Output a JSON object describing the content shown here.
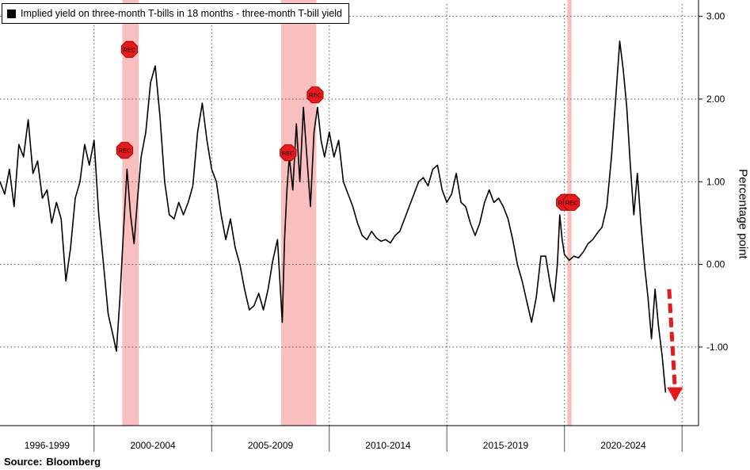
{
  "chart_data": {
    "type": "line",
    "series": [
      {
        "name": "Implied yield on three-month T-bills in 18 months - three-month T-bill yield",
        "color": "#000000",
        "points": [
          [
            1996.0,
            1.0
          ],
          [
            1996.2,
            0.85
          ],
          [
            1996.4,
            1.15
          ],
          [
            1996.6,
            0.7
          ],
          [
            1996.8,
            1.45
          ],
          [
            1997.0,
            1.3
          ],
          [
            1997.2,
            1.75
          ],
          [
            1997.4,
            1.1
          ],
          [
            1997.6,
            1.25
          ],
          [
            1997.8,
            0.8
          ],
          [
            1998.0,
            0.9
          ],
          [
            1998.2,
            0.5
          ],
          [
            1998.4,
            0.75
          ],
          [
            1998.6,
            0.55
          ],
          [
            1998.8,
            -0.2
          ],
          [
            1999.0,
            0.2
          ],
          [
            1999.2,
            0.8
          ],
          [
            1999.4,
            1.0
          ],
          [
            1999.6,
            1.45
          ],
          [
            1999.8,
            1.2
          ],
          [
            2000.0,
            1.5
          ],
          [
            2000.2,
            0.6
          ],
          [
            2000.4,
            0.0
          ],
          [
            2000.6,
            -0.6
          ],
          [
            2000.8,
            -0.85
          ],
          [
            2000.95,
            -1.05
          ],
          [
            2001.1,
            -0.4
          ],
          [
            2001.25,
            0.4
          ],
          [
            2001.4,
            1.15
          ],
          [
            2001.55,
            0.6
          ],
          [
            2001.7,
            0.25
          ],
          [
            2001.85,
            0.8
          ],
          [
            2002.0,
            1.3
          ],
          [
            2002.2,
            1.6
          ],
          [
            2002.4,
            2.2
          ],
          [
            2002.6,
            2.4
          ],
          [
            2002.8,
            1.8
          ],
          [
            2003.0,
            1.0
          ],
          [
            2003.2,
            0.6
          ],
          [
            2003.4,
            0.55
          ],
          [
            2003.6,
            0.75
          ],
          [
            2003.8,
            0.6
          ],
          [
            2004.0,
            0.75
          ],
          [
            2004.2,
            0.95
          ],
          [
            2004.4,
            1.6
          ],
          [
            2004.6,
            1.95
          ],
          [
            2004.8,
            1.5
          ],
          [
            2005.0,
            1.15
          ],
          [
            2005.2,
            1.0
          ],
          [
            2005.4,
            0.6
          ],
          [
            2005.6,
            0.3
          ],
          [
            2005.8,
            0.55
          ],
          [
            2006.0,
            0.2
          ],
          [
            2006.2,
            0.0
          ],
          [
            2006.4,
            -0.3
          ],
          [
            2006.6,
            -0.55
          ],
          [
            2006.8,
            -0.5
          ],
          [
            2007.0,
            -0.35
          ],
          [
            2007.2,
            -0.55
          ],
          [
            2007.4,
            -0.3
          ],
          [
            2007.6,
            0.05
          ],
          [
            2007.8,
            0.3
          ],
          [
            2008.0,
            -0.7
          ],
          [
            2008.1,
            0.3
          ],
          [
            2008.2,
            0.9
          ],
          [
            2008.3,
            1.3
          ],
          [
            2008.45,
            0.9
          ],
          [
            2008.6,
            1.7
          ],
          [
            2008.75,
            1.0
          ],
          [
            2008.9,
            1.9
          ],
          [
            2009.05,
            1.3
          ],
          [
            2009.2,
            0.7
          ],
          [
            2009.35,
            1.6
          ],
          [
            2009.5,
            1.9
          ],
          [
            2009.65,
            1.5
          ],
          [
            2009.8,
            1.3
          ],
          [
            2010.0,
            1.6
          ],
          [
            2010.2,
            1.3
          ],
          [
            2010.4,
            1.5
          ],
          [
            2010.6,
            1.0
          ],
          [
            2010.8,
            0.85
          ],
          [
            2011.0,
            0.7
          ],
          [
            2011.2,
            0.5
          ],
          [
            2011.4,
            0.35
          ],
          [
            2011.6,
            0.3
          ],
          [
            2011.8,
            0.4
          ],
          [
            2012.0,
            0.32
          ],
          [
            2012.2,
            0.28
          ],
          [
            2012.4,
            0.3
          ],
          [
            2012.6,
            0.26
          ],
          [
            2012.8,
            0.35
          ],
          [
            2013.0,
            0.4
          ],
          [
            2013.2,
            0.55
          ],
          [
            2013.4,
            0.7
          ],
          [
            2013.6,
            0.85
          ],
          [
            2013.8,
            1.0
          ],
          [
            2014.0,
            1.05
          ],
          [
            2014.2,
            0.95
          ],
          [
            2014.4,
            1.15
          ],
          [
            2014.6,
            1.2
          ],
          [
            2014.8,
            0.9
          ],
          [
            2015.0,
            0.75
          ],
          [
            2015.2,
            0.85
          ],
          [
            2015.4,
            1.1
          ],
          [
            2015.6,
            0.75
          ],
          [
            2015.8,
            0.7
          ],
          [
            2016.0,
            0.5
          ],
          [
            2016.2,
            0.35
          ],
          [
            2016.4,
            0.5
          ],
          [
            2016.6,
            0.75
          ],
          [
            2016.8,
            0.9
          ],
          [
            2017.0,
            0.75
          ],
          [
            2017.2,
            0.8
          ],
          [
            2017.4,
            0.7
          ],
          [
            2017.6,
            0.55
          ],
          [
            2017.8,
            0.3
          ],
          [
            2018.0,
            0.0
          ],
          [
            2018.2,
            -0.2
          ],
          [
            2018.4,
            -0.45
          ],
          [
            2018.6,
            -0.7
          ],
          [
            2018.8,
            -0.4
          ],
          [
            2019.0,
            0.1
          ],
          [
            2019.2,
            0.1
          ],
          [
            2019.4,
            -0.25
          ],
          [
            2019.55,
            -0.45
          ],
          [
            2019.7,
            0.0
          ],
          [
            2019.8,
            0.6
          ],
          [
            2019.9,
            0.3
          ],
          [
            2020.0,
            0.12
          ],
          [
            2020.2,
            0.05
          ],
          [
            2020.4,
            0.1
          ],
          [
            2020.6,
            0.08
          ],
          [
            2020.8,
            0.15
          ],
          [
            2021.0,
            0.25
          ],
          [
            2021.2,
            0.3
          ],
          [
            2021.4,
            0.38
          ],
          [
            2021.6,
            0.45
          ],
          [
            2021.8,
            0.7
          ],
          [
            2022.0,
            1.3
          ],
          [
            2022.2,
            2.1
          ],
          [
            2022.35,
            2.7
          ],
          [
            2022.5,
            2.35
          ],
          [
            2022.65,
            1.9
          ],
          [
            2022.8,
            1.2
          ],
          [
            2022.95,
            0.6
          ],
          [
            2023.1,
            1.1
          ],
          [
            2023.25,
            0.5
          ],
          [
            2023.4,
            0.0
          ],
          [
            2023.55,
            -0.4
          ],
          [
            2023.7,
            -0.9
          ],
          [
            2023.85,
            -0.3
          ],
          [
            2024.0,
            -0.75
          ],
          [
            2024.15,
            -1.1
          ],
          [
            2024.3,
            -1.55
          ]
        ]
      }
    ],
    "recession_bands": [
      [
        2001.2,
        2001.9
      ],
      [
        2007.95,
        2009.45
      ],
      [
        2020.12,
        2020.3
      ]
    ],
    "recession_label": "REC",
    "recession_markers": [
      [
        2001.5,
        2.6
      ],
      [
        2001.3,
        1.38
      ],
      [
        2008.25,
        1.35
      ],
      [
        2009.4,
        2.05
      ],
      [
        2020.0,
        0.75
      ],
      [
        2020.3,
        0.75
      ]
    ],
    "forecast_arrow": {
      "from": [
        2024.45,
        -0.3
      ],
      "to": [
        2024.7,
        -1.62
      ],
      "color": "#e8191a"
    },
    "legend": "Implied yield on three-month T-bills in 18 months - three-month T-bill yield",
    "ylabel": "Percentage point",
    "yticks": [
      3.0,
      2.0,
      1.0,
      0.0,
      -1.0
    ],
    "ytick_labels": [
      "3.00",
      "2.00",
      "1.00",
      "0.00",
      "-1.00"
    ],
    "ylim": [
      -1.95,
      3.15
    ],
    "xlim": [
      1996.0,
      2025.7
    ],
    "x_category_labels": [
      "1996-1999",
      "2000-2004",
      "2005-2009",
      "2010-2014",
      "2015-2019",
      "2020-2024"
    ],
    "x_category_centers": [
      1998.0,
      2002.5,
      2007.5,
      2012.5,
      2017.5,
      2022.5
    ],
    "x_separators": [
      2000.0,
      2005.0,
      2010.0,
      2015.0,
      2020.0,
      2025.0
    ],
    "grid": true,
    "legend_position": "top-left"
  },
  "source": {
    "label": "Source:",
    "value": "Bloomberg"
  }
}
